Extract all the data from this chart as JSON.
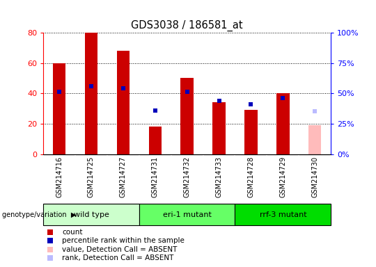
{
  "title": "GDS3038 / 186581_at",
  "samples": [
    "GSM214716",
    "GSM214725",
    "GSM214727",
    "GSM214731",
    "GSM214732",
    "GSM214733",
    "GSM214728",
    "GSM214729",
    "GSM214730"
  ],
  "counts": [
    60,
    80,
    68,
    18,
    50,
    34,
    29,
    40,
    null
  ],
  "ranks": [
    51,
    56,
    54,
    36,
    51,
    44,
    41,
    46,
    null
  ],
  "absent_value": [
    null,
    null,
    null,
    null,
    null,
    null,
    null,
    null,
    19
  ],
  "absent_rank": [
    null,
    null,
    null,
    null,
    null,
    null,
    null,
    null,
    35
  ],
  "groups": [
    {
      "label": "wild type",
      "start": 0,
      "end": 3
    },
    {
      "label": "eri-1 mutant",
      "start": 3,
      "end": 6
    },
    {
      "label": "rrf-3 mutant",
      "start": 6,
      "end": 9
    }
  ],
  "group_colors": [
    "#ccffcc",
    "#66ff66",
    "#00dd00"
  ],
  "ylim_left": [
    0,
    80
  ],
  "ylim_right": [
    0,
    100
  ],
  "yticks_left": [
    0,
    20,
    40,
    60,
    80
  ],
  "yticks_right": [
    0,
    25,
    50,
    75,
    100
  ],
  "bar_color": "#cc0000",
  "rank_color": "#0000bb",
  "absent_bar_color": "#ffbbbb",
  "absent_rank_color": "#bbbbff",
  "label_area_color": "#cccccc",
  "legend_labels": [
    "count",
    "percentile rank within the sample",
    "value, Detection Call = ABSENT",
    "rank, Detection Call = ABSENT"
  ],
  "legend_colors": [
    "#cc0000",
    "#0000bb",
    "#ffbbbb",
    "#bbbbff"
  ],
  "bar_width": 0.4,
  "figsize": [
    5.4,
    3.84
  ],
  "dpi": 100
}
